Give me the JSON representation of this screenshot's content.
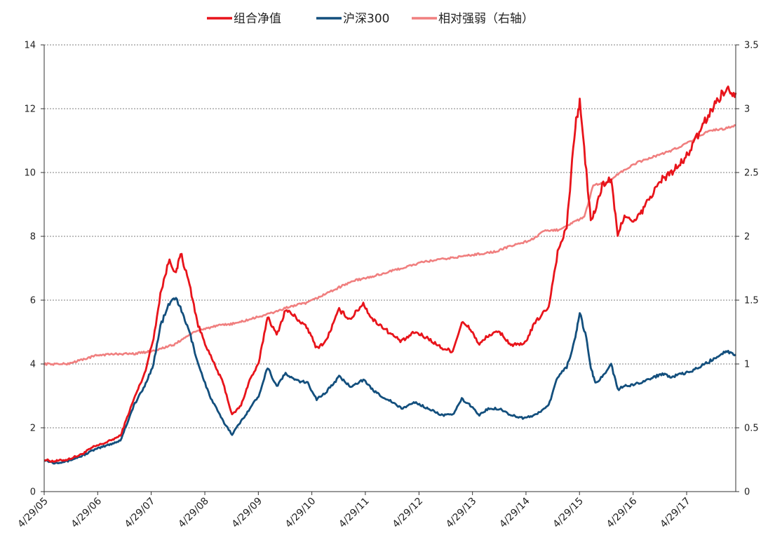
{
  "chart_data": {
    "type": "line",
    "legend": {
      "placement": "top-center",
      "entries": [
        "组合净值",
        "沪深300",
        "相对强弱（右轴）"
      ]
    },
    "x_tick_labels": [
      "4/29/05",
      "4/29/06",
      "4/29/07",
      "4/29/08",
      "4/29/09",
      "4/29/10",
      "4/29/11",
      "4/29/12",
      "4/29/13",
      "4/29/14",
      "4/29/15",
      "4/29/16",
      "4/29/17"
    ],
    "xlim": [
      "2005-04-29",
      "2018-03-30"
    ],
    "y_left": {
      "range": [
        0,
        14
      ],
      "ticks": [
        "0",
        "2",
        "4",
        "6",
        "8",
        "10",
        "12",
        "14"
      ]
    },
    "y_right": {
      "range": [
        0,
        3.5
      ],
      "ticks": [
        "0",
        "0.5",
        "1",
        "1.5",
        "2",
        "2.5",
        "3",
        "3.5"
      ]
    },
    "grid": "horizontal-dotted",
    "series": [
      {
        "name": "组合净值",
        "axis": "left",
        "color": "#e8141b",
        "points": [
          [
            "2005-04-29",
            1.0
          ],
          [
            "2005-07-01",
            0.95
          ],
          [
            "2005-10-01",
            1.0
          ],
          [
            "2006-01-01",
            1.15
          ],
          [
            "2006-04-01",
            1.4
          ],
          [
            "2006-07-01",
            1.55
          ],
          [
            "2006-10-01",
            1.75
          ],
          [
            "2007-01-01",
            2.9
          ],
          [
            "2007-03-15",
            3.7
          ],
          [
            "2007-05-15",
            4.8
          ],
          [
            "2007-07-01",
            6.2
          ],
          [
            "2007-09-01",
            7.3
          ],
          [
            "2007-10-15",
            6.8
          ],
          [
            "2007-11-15",
            7.5
          ],
          [
            "2008-01-15",
            6.5
          ],
          [
            "2008-03-15",
            5.2
          ],
          [
            "2008-06-01",
            4.3
          ],
          [
            "2008-09-01",
            3.4
          ],
          [
            "2008-11-01",
            2.4
          ],
          [
            "2009-01-01",
            2.7
          ],
          [
            "2009-03-01",
            3.5
          ],
          [
            "2009-05-01",
            4.0
          ],
          [
            "2009-07-01",
            5.5
          ],
          [
            "2009-09-01",
            4.9
          ],
          [
            "2009-11-01",
            5.7
          ],
          [
            "2010-01-01",
            5.5
          ],
          [
            "2010-04-01",
            5.1
          ],
          [
            "2010-06-01",
            4.5
          ],
          [
            "2010-08-01",
            4.7
          ],
          [
            "2010-11-01",
            5.7
          ],
          [
            "2011-01-15",
            5.4
          ],
          [
            "2011-04-15",
            5.9
          ],
          [
            "2011-06-15",
            5.4
          ],
          [
            "2011-08-15",
            5.2
          ],
          [
            "2011-11-01",
            4.9
          ],
          [
            "2012-01-01",
            4.7
          ],
          [
            "2012-04-01",
            5.0
          ],
          [
            "2012-07-01",
            4.8
          ],
          [
            "2012-10-01",
            4.5
          ],
          [
            "2012-12-15",
            4.4
          ],
          [
            "2013-02-15",
            5.3
          ],
          [
            "2013-04-15",
            5.1
          ],
          [
            "2013-06-15",
            4.6
          ],
          [
            "2013-08-15",
            4.9
          ],
          [
            "2013-11-01",
            5.0
          ],
          [
            "2014-01-15",
            4.6
          ],
          [
            "2014-04-15",
            4.6
          ],
          [
            "2014-07-01",
            5.3
          ],
          [
            "2014-10-01",
            5.8
          ],
          [
            "2014-12-01",
            7.5
          ],
          [
            "2015-02-01",
            8.3
          ],
          [
            "2015-04-01",
            11.5
          ],
          [
            "2015-05-01",
            12.2
          ],
          [
            "2015-06-15",
            10.0
          ],
          [
            "2015-07-15",
            8.5
          ],
          [
            "2015-08-15",
            8.8
          ],
          [
            "2015-10-01",
            9.6
          ],
          [
            "2015-12-01",
            9.8
          ],
          [
            "2016-01-15",
            8.0
          ],
          [
            "2016-03-01",
            8.7
          ],
          [
            "2016-05-01",
            8.4
          ],
          [
            "2016-07-01",
            8.8
          ],
          [
            "2016-09-01",
            9.3
          ],
          [
            "2016-11-15",
            9.8
          ],
          [
            "2017-01-15",
            10.0
          ],
          [
            "2017-04-15",
            10.4
          ],
          [
            "2017-06-15",
            10.9
          ],
          [
            "2017-09-01",
            11.6
          ],
          [
            "2017-11-15",
            12.2
          ],
          [
            "2018-01-15",
            12.6
          ],
          [
            "2018-03-30",
            12.5
          ]
        ]
      },
      {
        "name": "沪深300",
        "axis": "left",
        "color": "#134f7d",
        "points": [
          [
            "2005-04-29",
            1.0
          ],
          [
            "2005-07-01",
            0.9
          ],
          [
            "2005-10-01",
            0.95
          ],
          [
            "2006-01-01",
            1.1
          ],
          [
            "2006-04-01",
            1.3
          ],
          [
            "2006-07-01",
            1.45
          ],
          [
            "2006-10-01",
            1.6
          ],
          [
            "2007-01-01",
            2.7
          ],
          [
            "2007-03-15",
            3.3
          ],
          [
            "2007-05-15",
            4.0
          ],
          [
            "2007-07-01",
            5.2
          ],
          [
            "2007-09-01",
            5.9
          ],
          [
            "2007-10-15",
            6.1
          ],
          [
            "2008-01-15",
            5.0
          ],
          [
            "2008-03-15",
            4.0
          ],
          [
            "2008-06-01",
            3.0
          ],
          [
            "2008-09-01",
            2.2
          ],
          [
            "2008-11-01",
            1.8
          ],
          [
            "2009-01-01",
            2.2
          ],
          [
            "2009-03-01",
            2.6
          ],
          [
            "2009-05-01",
            3.0
          ],
          [
            "2009-07-01",
            3.9
          ],
          [
            "2009-09-01",
            3.3
          ],
          [
            "2009-11-01",
            3.7
          ],
          [
            "2010-01-01",
            3.5
          ],
          [
            "2010-04-01",
            3.4
          ],
          [
            "2010-06-01",
            2.9
          ],
          [
            "2010-08-01",
            3.1
          ],
          [
            "2010-11-01",
            3.6
          ],
          [
            "2011-01-15",
            3.3
          ],
          [
            "2011-04-15",
            3.5
          ],
          [
            "2011-06-15",
            3.2
          ],
          [
            "2011-08-15",
            3.0
          ],
          [
            "2011-11-01",
            2.8
          ],
          [
            "2012-01-01",
            2.6
          ],
          [
            "2012-04-01",
            2.8
          ],
          [
            "2012-07-01",
            2.6
          ],
          [
            "2012-10-01",
            2.4
          ],
          [
            "2012-12-15",
            2.4
          ],
          [
            "2013-02-15",
            2.9
          ],
          [
            "2013-04-15",
            2.7
          ],
          [
            "2013-06-15",
            2.4
          ],
          [
            "2013-08-15",
            2.6
          ],
          [
            "2013-11-01",
            2.6
          ],
          [
            "2014-01-15",
            2.4
          ],
          [
            "2014-04-15",
            2.3
          ],
          [
            "2014-07-01",
            2.4
          ],
          [
            "2014-10-01",
            2.7
          ],
          [
            "2014-12-01",
            3.6
          ],
          [
            "2015-02-01",
            3.9
          ],
          [
            "2015-04-01",
            4.8
          ],
          [
            "2015-05-01",
            5.6
          ],
          [
            "2015-06-15",
            4.8
          ],
          [
            "2015-07-15",
            3.9
          ],
          [
            "2015-08-15",
            3.4
          ],
          [
            "2015-10-01",
            3.6
          ],
          [
            "2015-12-01",
            4.0
          ],
          [
            "2016-01-15",
            3.2
          ],
          [
            "2016-03-01",
            3.3
          ],
          [
            "2016-05-01",
            3.35
          ],
          [
            "2016-07-01",
            3.45
          ],
          [
            "2016-09-01",
            3.55
          ],
          [
            "2016-11-15",
            3.7
          ],
          [
            "2017-01-15",
            3.6
          ],
          [
            "2017-04-15",
            3.7
          ],
          [
            "2017-06-15",
            3.8
          ],
          [
            "2017-09-01",
            4.0
          ],
          [
            "2017-11-15",
            4.2
          ],
          [
            "2018-01-15",
            4.4
          ],
          [
            "2018-03-30",
            4.3
          ]
        ]
      },
      {
        "name": "相对强弱（右轴）",
        "axis": "right",
        "color": "#f07f7f",
        "points": [
          [
            "2005-04-29",
            1.0
          ],
          [
            "2005-10-01",
            1.0
          ],
          [
            "2006-01-01",
            1.03
          ],
          [
            "2006-05-01",
            1.07
          ],
          [
            "2006-10-01",
            1.08
          ],
          [
            "2007-01-01",
            1.08
          ],
          [
            "2007-05-01",
            1.1
          ],
          [
            "2007-10-01",
            1.15
          ],
          [
            "2008-01-01",
            1.22
          ],
          [
            "2008-04-01",
            1.27
          ],
          [
            "2008-08-01",
            1.3
          ],
          [
            "2008-12-01",
            1.32
          ],
          [
            "2009-04-01",
            1.36
          ],
          [
            "2009-08-01",
            1.4
          ],
          [
            "2009-12-01",
            1.45
          ],
          [
            "2010-04-01",
            1.48
          ],
          [
            "2010-08-01",
            1.55
          ],
          [
            "2010-11-01",
            1.6
          ],
          [
            "2011-02-01",
            1.65
          ],
          [
            "2011-06-01",
            1.68
          ],
          [
            "2011-10-01",
            1.72
          ],
          [
            "2012-02-01",
            1.76
          ],
          [
            "2012-06-01",
            1.8
          ],
          [
            "2012-10-01",
            1.82
          ],
          [
            "2013-02-01",
            1.84
          ],
          [
            "2013-06-01",
            1.86
          ],
          [
            "2013-10-01",
            1.88
          ],
          [
            "2014-02-01",
            1.93
          ],
          [
            "2014-06-01",
            1.97
          ],
          [
            "2014-09-01",
            2.04
          ],
          [
            "2014-12-01",
            2.05
          ],
          [
            "2015-03-01",
            2.1
          ],
          [
            "2015-06-01",
            2.15
          ],
          [
            "2015-08-01",
            2.4
          ],
          [
            "2015-11-01",
            2.42
          ],
          [
            "2016-02-01",
            2.5
          ],
          [
            "2016-06-01",
            2.58
          ],
          [
            "2016-10-01",
            2.63
          ],
          [
            "2017-02-01",
            2.68
          ],
          [
            "2017-06-01",
            2.75
          ],
          [
            "2017-10-01",
            2.83
          ],
          [
            "2018-01-01",
            2.84
          ],
          [
            "2018-03-30",
            2.87
          ]
        ]
      }
    ]
  }
}
